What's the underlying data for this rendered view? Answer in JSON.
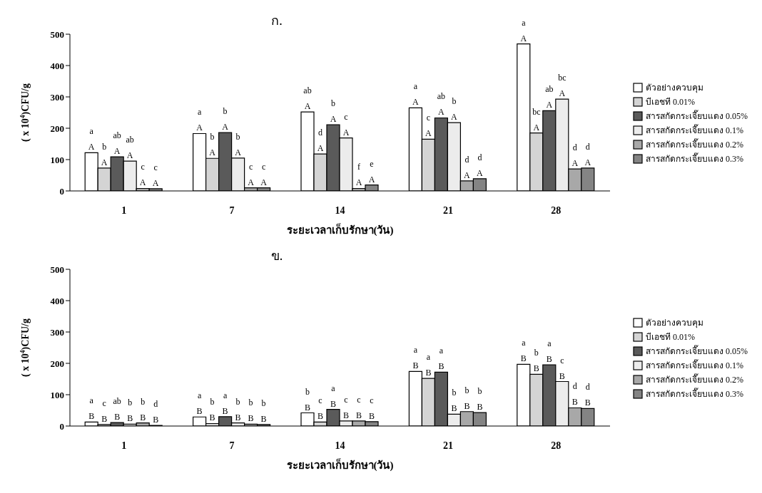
{
  "chart_data": [
    {
      "type": "bar",
      "title": "ก.",
      "xlabel": "ระยะเวลาเก็บรักษา(วัน)",
      "ylabel": "( x 10$^{4}$)CFU/g",
      "categories": [
        "1",
        "7",
        "14",
        "21",
        "28"
      ],
      "ylim": [
        0,
        500
      ],
      "yticks": [
        0,
        100,
        200,
        300,
        400,
        500
      ],
      "legend": "right",
      "grid": false,
      "series": [
        {
          "name": "ตัวอย่างควบคุม",
          "color": "#ffffff",
          "values": [
            122,
            183,
            252,
            265,
            469
          ],
          "value_labels": [
            "a\nA",
            "a\nA",
            "ab\nA",
            "a\nA",
            "a\nA"
          ]
        },
        {
          "name": "บีเอชที 0.01%",
          "color": "#d4d4d4",
          "values": [
            73,
            104,
            118,
            165,
            185
          ],
          "value_labels": [
            "b\nA",
            "b\nA",
            "d\nA",
            "c\nA",
            "bc\nA"
          ]
        },
        {
          "name": "สารสกัดกระเจี๊ยบแดง 0.05%",
          "color": "#5a5a5a",
          "values": [
            109,
            186,
            211,
            233,
            256
          ],
          "value_labels": [
            "ab\nA",
            "b\nA",
            "b\nA",
            "ab\nA",
            "ab\nA"
          ]
        },
        {
          "name": "สารสกัดกระเจี๊ยบแดง 0.1%",
          "color": "#ececec",
          "values": [
            95,
            105,
            169,
            218,
            293
          ],
          "value_labels": [
            "ab\nA",
            "b\nA",
            "c\nA",
            "b\nA",
            "bc\nA"
          ]
        },
        {
          "name": "สารสกัดกระเจี๊ยบแดง 0.2%",
          "color": "#a8a8a8",
          "values": [
            8,
            10,
            8,
            32,
            70
          ],
          "value_labels": [
            "c\nA",
            "c\nA",
            "f\nA",
            "d\nA",
            "d\nA"
          ]
        },
        {
          "name": "สารสกัดกระเจี๊ยบแดง 0.3%",
          "color": "#848484",
          "values": [
            7,
            10,
            19,
            39,
            73
          ],
          "value_labels": [
            "c\nA",
            "c\nA",
            "e\nA",
            "d\nA",
            "d\nA"
          ]
        }
      ]
    },
    {
      "type": "bar",
      "title": "ข.",
      "xlabel": "ระยะเวลาเก็บรักษา(วัน)",
      "ylabel": "( x 10$^{4}$)CFU/g",
      "categories": [
        "1",
        "7",
        "14",
        "21",
        "28"
      ],
      "ylim": [
        0,
        500
      ],
      "yticks": [
        0,
        100,
        200,
        300,
        400,
        500
      ],
      "legend": "right",
      "grid": false,
      "series": [
        {
          "name": "ตัวอย่างควบคุม",
          "color": "#ffffff",
          "values": [
            13,
            29,
            42,
            174,
            197
          ],
          "value_labels": [
            "a\nB",
            "a\nB",
            "b\nB",
            "a\nB",
            "a\nB"
          ]
        },
        {
          "name": "บีเอชที 0.01%",
          "color": "#d4d4d4",
          "values": [
            5,
            8,
            13,
            152,
            165
          ],
          "value_labels": [
            "c\nB",
            "b\nB",
            "c\nB",
            "a\nB",
            "b\nB"
          ]
        },
        {
          "name": "สารสกัดกระเจี๊ยบแดง 0.05%",
          "color": "#5a5a5a",
          "values": [
            11,
            30,
            53,
            172,
            195
          ],
          "value_labels": [
            "ab\nB",
            "a\nB",
            "a\nB",
            "a\nB",
            "a\nB"
          ]
        },
        {
          "name": "สารสกัดกระเจี๊ยบแดง 0.1%",
          "color": "#ececec",
          "values": [
            6,
            10,
            16,
            38,
            142
          ],
          "value_labels": [
            "b\nB",
            "b\nB",
            "c\nB",
            "b\nB",
            "c\nB"
          ]
        },
        {
          "name": "สารสกัดกระเจี๊ยบแดง 0.2%",
          "color": "#a8a8a8",
          "values": [
            10,
            6,
            16,
            46,
            58
          ],
          "value_labels": [
            "b\nB",
            "b\nB",
            "c\nB",
            "b\nB",
            "d\nB"
          ]
        },
        {
          "name": "สารสกัดกระเจี๊ยบแดง 0.3%",
          "color": "#848484",
          "values": [
            2,
            5,
            14,
            43,
            56
          ],
          "value_labels": [
            "d\nB",
            "b\nB",
            "c\nB",
            "b\nB",
            "d\nB"
          ]
        }
      ]
    }
  ]
}
